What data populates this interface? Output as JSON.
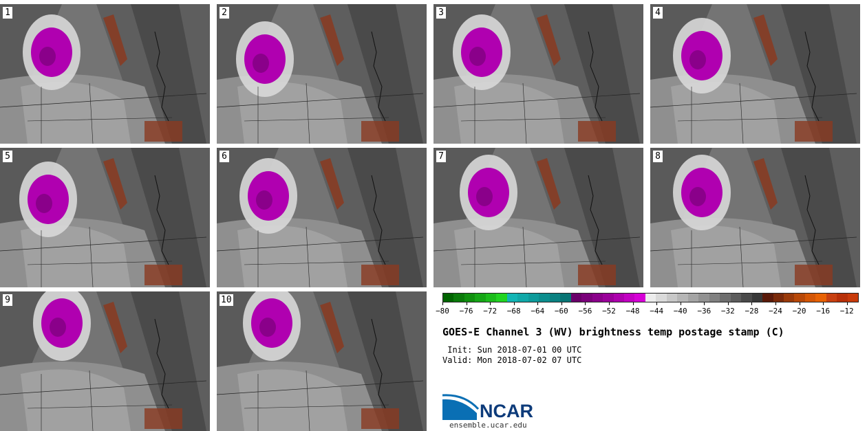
{
  "panels": [
    {
      "label": "1"
    },
    {
      "label": "2"
    },
    {
      "label": "3"
    },
    {
      "label": "4"
    },
    {
      "label": "5"
    },
    {
      "label": "6"
    },
    {
      "label": "7"
    },
    {
      "label": "8"
    },
    {
      "label": "9"
    },
    {
      "label": "10"
    }
  ],
  "colorbar": {
    "colors": [
      "#006400",
      "#0a7a0a",
      "#10900f",
      "#16a616",
      "#1cbc1c",
      "#22d422",
      "#12b5b5",
      "#10a8a8",
      "#0e9b9b",
      "#0c8e8e",
      "#0a8181",
      "#087474",
      "#6a006a",
      "#7a007a",
      "#8a008a",
      "#9a009a",
      "#ad00ad",
      "#c200c2",
      "#d600d6",
      "#ececec",
      "#dadada",
      "#c8c8c8",
      "#b6b6b6",
      "#a4a4a4",
      "#929292",
      "#808080",
      "#6e6e6e",
      "#5c5c5c",
      "#4a4a4a",
      "#383838",
      "#5a1a0a",
      "#7a2a0a",
      "#9a3a0a",
      "#b84808",
      "#d45606",
      "#e86204",
      "#c84010",
      "#b83008",
      "#c83a0a"
    ],
    "tick_labels": [
      "−80",
      "−76",
      "−72",
      "−68",
      "−64",
      "−60",
      "−56",
      "−52",
      "−48",
      "−44",
      "−40",
      "−36",
      "−32",
      "−28",
      "−24",
      "−20",
      "−16",
      "−12"
    ],
    "tick_values": [
      -80,
      -76,
      -72,
      -68,
      -64,
      -60,
      -56,
      -52,
      -48,
      -44,
      -40,
      -36,
      -32,
      -28,
      -24,
      -20,
      -16,
      -12
    ],
    "min": -80,
    "max": -10
  },
  "title": "GOES-E Channel 3 (WV) brightness temp postage stamp (C)",
  "init": " Init: Sun 2018-07-01 00 UTC",
  "valid": "Valid: Mon 2018-07-02 07 UTC",
  "logo_text": "NCAR",
  "site": "ensemble.ucar.edu"
}
